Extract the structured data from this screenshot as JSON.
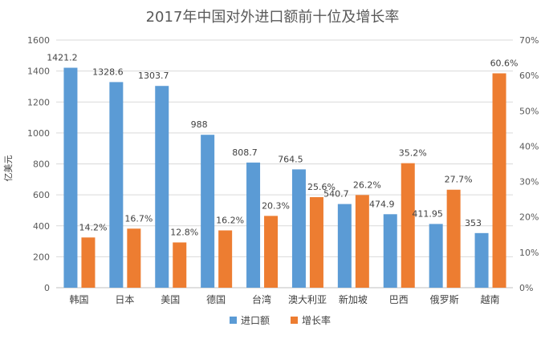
{
  "chart_data": {
    "type": "bar",
    "title": "2017年中国对外进口额前十位及增长率",
    "ylabel": "亿美元",
    "y2label": "",
    "categories": [
      "韩国",
      "日本",
      "美国",
      "德国",
      "台湾",
      "澳大利亚",
      "新加坡",
      "巴西",
      "俄罗斯",
      "越南"
    ],
    "ylim": [
      0,
      1600
    ],
    "y_ticks": [
      0,
      200,
      400,
      600,
      800,
      1000,
      1200,
      1400,
      1600
    ],
    "y2lim": [
      0,
      70
    ],
    "y2_ticks": [
      0,
      10,
      20,
      30,
      40,
      50,
      60,
      70
    ],
    "y2_unit": "%",
    "grid": true,
    "legend_position": "bottom",
    "series": [
      {
        "name": "进口额",
        "axis": "left",
        "color": "#5B9BD5",
        "values": [
          1421.2,
          1328.6,
          1303.7,
          988,
          808.7,
          764.5,
          540.7,
          474.9,
          411.95,
          353
        ],
        "labels": [
          "1421.2",
          "1328.6",
          "1303.7",
          "988",
          "808.7",
          "764.5",
          "540.7",
          "474.9",
          "411.95",
          "353"
        ]
      },
      {
        "name": "增长率",
        "axis": "right",
        "color": "#ED7D31",
        "values": [
          14.2,
          16.7,
          12.8,
          16.2,
          20.3,
          25.6,
          26.2,
          35.2,
          27.7,
          60.6
        ],
        "labels": [
          "14.2%",
          "16.7%",
          "12.8%",
          "16.2%",
          "20.3%",
          "25.6%",
          "26.2%",
          "35.2%",
          "27.7%",
          "60.6%"
        ]
      }
    ]
  }
}
